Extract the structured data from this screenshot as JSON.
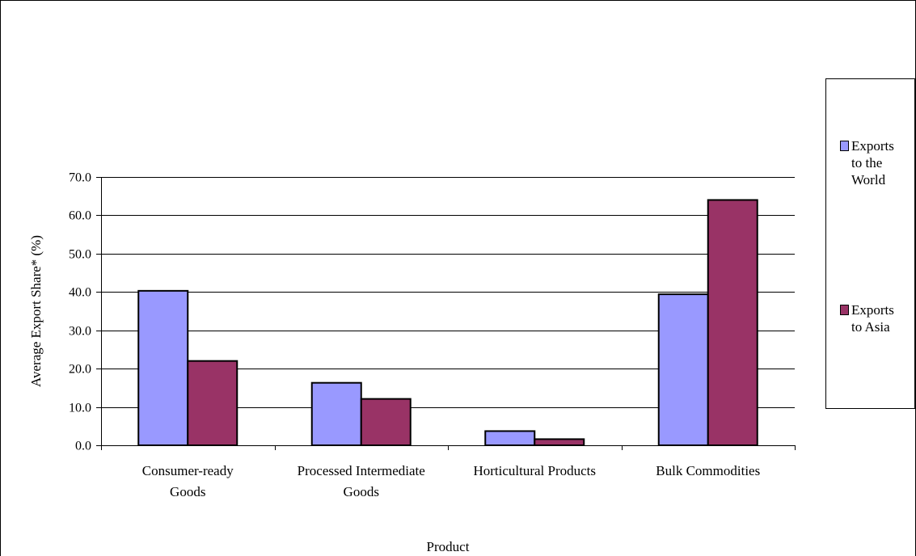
{
  "chart_data": {
    "type": "bar",
    "title": "",
    "xlabel": "Product",
    "ylabel": "Average Export Share* (%)",
    "ylim": [
      0,
      70
    ],
    "yticks": [
      "0.0",
      "10.0",
      "20.0",
      "30.0",
      "40.0",
      "50.0",
      "60.0",
      "70.0"
    ],
    "grid": true,
    "legend_position": "right",
    "categories": [
      [
        "Consumer-ready",
        "Goods"
      ],
      [
        "Processed Intermediate",
        "Goods"
      ],
      [
        "Horticultural Products"
      ],
      [
        "Bulk Commodities"
      ]
    ],
    "series": [
      {
        "name": "Exports to the World",
        "legend_lines": [
          "Exports",
          "to the",
          "World"
        ],
        "color": "#9999ff",
        "values": [
          40.3,
          16.3,
          3.7,
          39.4
        ]
      },
      {
        "name": "Exports to Asia",
        "legend_lines": [
          "Exports",
          "to Asia"
        ],
        "color": "#993366",
        "values": [
          22.0,
          12.1,
          1.6,
          64.0
        ]
      }
    ]
  }
}
